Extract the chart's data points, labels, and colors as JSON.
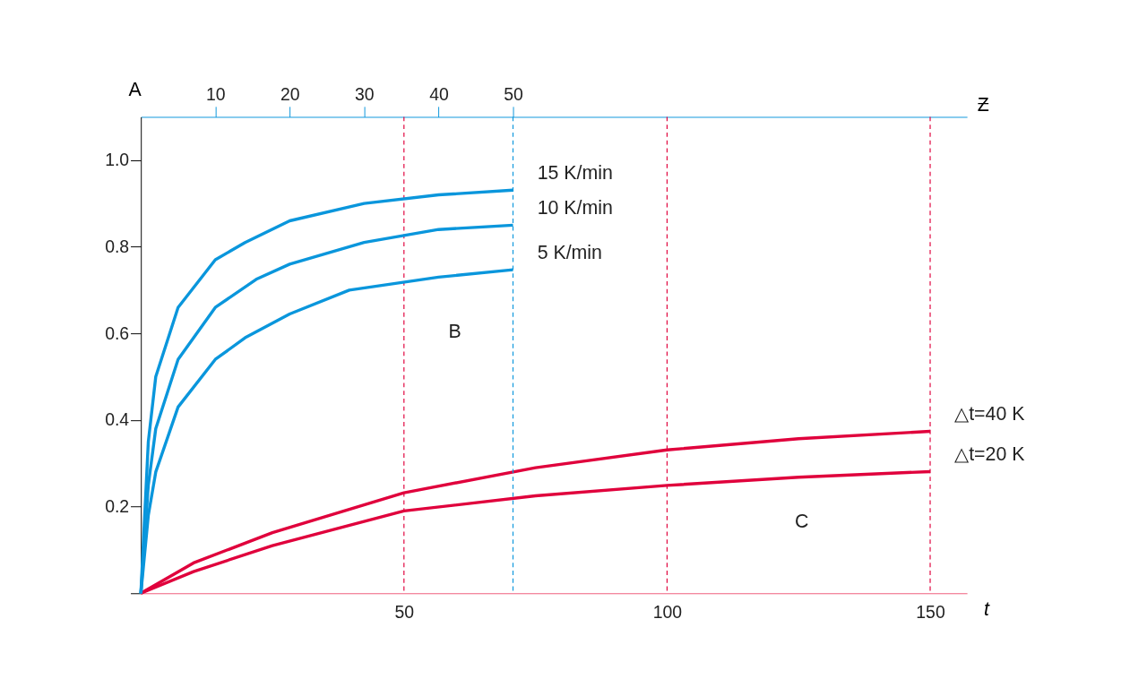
{
  "chart_data": {
    "type": "line",
    "xlabel": "t",
    "ylabel": "A",
    "x2label": "Ƶ",
    "xlim": [
      0,
      157
    ],
    "xticks": [
      50,
      100,
      150
    ],
    "x2lim": [
      0,
      111
    ],
    "x2ticks": [
      10,
      20,
      30,
      40,
      50
    ],
    "ylim": [
      0,
      1.1
    ],
    "yticks": [
      {
        "value": 0,
        "label": null
      },
      0.2,
      0.4,
      0.6,
      0.8,
      {
        "value": 1,
        "label": "1.0"
      }
    ],
    "grid": false,
    "legend": false,
    "marker": "none",
    "line_style": "solid",
    "series": [
      {
        "name": "15 K/min",
        "color": "#0a96dc",
        "axis": "x2",
        "x": [
          0,
          1,
          2,
          5,
          10,
          14,
          20,
          30,
          40,
          50
        ],
        "values": [
          0,
          0.35,
          0.5,
          0.66,
          0.77,
          0.81,
          0.86,
          0.9,
          0.92,
          0.931
        ]
      },
      {
        "name": "10 K/min",
        "color": "#0a96dc",
        "axis": "x2",
        "x": [
          0,
          1,
          2,
          5,
          10,
          15.5,
          20,
          30,
          40,
          50
        ],
        "values": [
          0,
          0.25,
          0.38,
          0.54,
          0.66,
          0.725,
          0.76,
          0.81,
          0.84,
          0.85
        ]
      },
      {
        "name": "5 K/min",
        "color": "#0a96dc",
        "axis": "x2",
        "x": [
          0,
          1,
          2,
          5,
          10,
          14,
          20,
          28,
          40,
          50
        ],
        "values": [
          0,
          0.18,
          0.28,
          0.43,
          0.54,
          0.59,
          0.645,
          0.7,
          0.73,
          0.747
        ]
      },
      {
        "name": "△t=40 K",
        "color": "#e0003c",
        "x": [
          0,
          10,
          25,
          50,
          75,
          100,
          125,
          150
        ],
        "values": [
          0,
          0.07,
          0.14,
          0.232,
          0.29,
          0.331,
          0.357,
          0.374
        ]
      },
      {
        "name": "△t=20 K",
        "color": "#e0003c",
        "x": [
          0,
          10,
          25,
          50,
          75,
          100,
          125,
          150
        ],
        "values": [
          0,
          0.05,
          0.11,
          0.19,
          0.225,
          0.249,
          0.268,
          0.281
        ]
      }
    ],
    "ref_lines": [
      {
        "axis": "x",
        "value": 50,
        "color": "#e0003c",
        "line_style": "dashed"
      },
      {
        "axis": "x",
        "value": 100,
        "color": "#e0003c",
        "line_style": "dashed"
      },
      {
        "axis": "x",
        "value": 150,
        "color": "#e0003c",
        "line_style": "dashed"
      },
      {
        "axis": "x2",
        "value": 50,
        "color": "#0a96dc",
        "line_style": "dashed"
      }
    ],
    "annotations": [
      "B",
      "C"
    ]
  }
}
